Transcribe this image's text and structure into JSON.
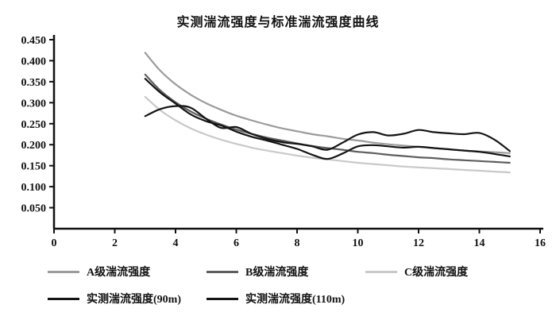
{
  "chart_data": {
    "type": "line",
    "title": "实测湍流强度与标准湍流强度曲线",
    "xlabel": "",
    "ylabel": "",
    "xlim": [
      0,
      16
    ],
    "ylim": [
      0,
      0.45
    ],
    "x_ticks": [
      0,
      2,
      4,
      6,
      8,
      10,
      12,
      14,
      16
    ],
    "x_tick_labels": [
      "0",
      "2",
      "4",
      "6",
      "8",
      "10",
      "12",
      "14",
      "16"
    ],
    "y_ticks": [
      0.05,
      0.1,
      0.15,
      0.2,
      0.25,
      0.3,
      0.35,
      0.4,
      0.45
    ],
    "y_tick_labels": [
      "0.050",
      "0.100",
      "0.150",
      "0.200",
      "0.250",
      "0.300",
      "0.350",
      "0.400",
      "0.450"
    ],
    "grid": false,
    "legend_position": "bottom",
    "axis_color": "#111111",
    "x": [
      3,
      3.5,
      4,
      4.5,
      5,
      5.5,
      6,
      6.5,
      7,
      7.5,
      8,
      8.5,
      9,
      9.5,
      10,
      10.5,
      11,
      11.5,
      12,
      12.5,
      13,
      13.5,
      14,
      14.5,
      15
    ],
    "series": [
      {
        "name": "A级湍流强度",
        "color": "#9b9b9b",
        "width": 2.2,
        "values": [
          0.419,
          0.376,
          0.344,
          0.319,
          0.299,
          0.283,
          0.269,
          0.258,
          0.248,
          0.239,
          0.232,
          0.225,
          0.22,
          0.214,
          0.21,
          0.205,
          0.201,
          0.198,
          0.195,
          0.192,
          0.189,
          0.186,
          0.184,
          0.182,
          0.18
        ]
      },
      {
        "name": "B级湍流强度",
        "color": "#5e5e5e",
        "width": 2.2,
        "values": [
          0.367,
          0.329,
          0.301,
          0.279,
          0.262,
          0.248,
          0.236,
          0.226,
          0.217,
          0.21,
          0.203,
          0.197,
          0.192,
          0.188,
          0.183,
          0.18,
          0.176,
          0.173,
          0.17,
          0.168,
          0.165,
          0.163,
          0.161,
          0.159,
          0.157
        ]
      },
      {
        "name": "C级湍流强度",
        "color": "#c9c9c9",
        "width": 2.2,
        "values": [
          0.314,
          0.282,
          0.258,
          0.239,
          0.224,
          0.212,
          0.202,
          0.193,
          0.186,
          0.18,
          0.174,
          0.169,
          0.165,
          0.161,
          0.157,
          0.154,
          0.151,
          0.148,
          0.146,
          0.144,
          0.142,
          0.14,
          0.138,
          0.136,
          0.134
        ]
      },
      {
        "name": "实测湍流强度(90m)",
        "color": "#141414",
        "width": 2.2,
        "values": [
          0.268,
          0.285,
          0.292,
          0.288,
          0.262,
          0.24,
          0.242,
          0.226,
          0.214,
          0.206,
          0.202,
          0.196,
          0.188,
          0.205,
          0.224,
          0.23,
          0.222,
          0.226,
          0.235,
          0.23,
          0.227,
          0.225,
          0.228,
          0.212,
          0.185
        ]
      },
      {
        "name": "实测湍流强度(110m)",
        "color": "#141414",
        "width": 2.2,
        "values": [
          0.357,
          0.324,
          0.298,
          0.272,
          0.256,
          0.246,
          0.231,
          0.219,
          0.21,
          0.2,
          0.19,
          0.176,
          0.166,
          0.179,
          0.196,
          0.199,
          0.196,
          0.193,
          0.195,
          0.192,
          0.189,
          0.186,
          0.183,
          0.178,
          0.172
        ]
      }
    ]
  }
}
